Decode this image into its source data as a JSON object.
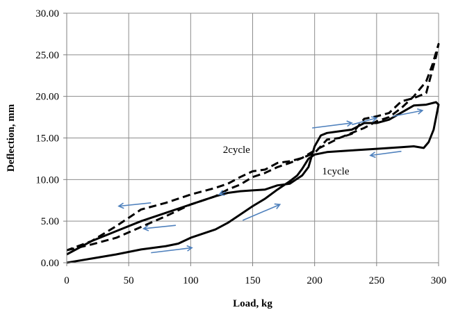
{
  "chart_data": {
    "type": "line",
    "xlabel": "Load, kg",
    "ylabel": "Deflection, mm",
    "xlim": [
      0,
      300
    ],
    "ylim": [
      0,
      30
    ],
    "x_ticks": [
      "0",
      "50",
      "100",
      "150",
      "200",
      "250",
      "300"
    ],
    "y_ticks": [
      "0.00",
      "5.00",
      "10.00",
      "15.00",
      "20.00",
      "25.00",
      "30.00"
    ],
    "grid": "vertical-and-horizontal",
    "legend": "none",
    "series": [
      {
        "style": "solid",
        "x": [
          0,
          20,
          40,
          60,
          80,
          90,
          100,
          120,
          130,
          140,
          150,
          160,
          170,
          180,
          186,
          190,
          195,
          200,
          210,
          230,
          250,
          270,
          280,
          288,
          292,
          296,
          300,
          298,
          290,
          280,
          260,
          250,
          240,
          230,
          220,
          210,
          205,
          200,
          198,
          195,
          190,
          185,
          180,
          170,
          160,
          150,
          140,
          130,
          120,
          100,
          80,
          60,
          40,
          20,
          0
        ],
        "y": [
          0,
          0.5,
          1.0,
          1.6,
          2.0,
          2.3,
          3.0,
          4.0,
          4.8,
          5.8,
          6.8,
          7.7,
          8.8,
          9.8,
          10.5,
          11.3,
          12.5,
          13.0,
          13.3,
          13.5,
          13.7,
          13.9,
          14.0,
          13.8,
          14.5,
          16.0,
          19.0,
          19.3,
          19.0,
          18.9,
          17.2,
          16.8,
          16.8,
          16.0,
          15.8,
          15.6,
          15.3,
          14.0,
          13.0,
          11.5,
          10.5,
          10.0,
          9.5,
          9.3,
          8.8,
          8.7,
          8.6,
          8.4,
          8.0,
          7.0,
          6.0,
          5.0,
          3.8,
          2.6,
          1.0
        ]
      },
      {
        "style": "dashed",
        "x": [
          0,
          20,
          40,
          60,
          80,
          100,
          120,
          130,
          140,
          150,
          160,
          170,
          180,
          190,
          200,
          220,
          240,
          250,
          260,
          270,
          280,
          290,
          295,
          300,
          298,
          290,
          280,
          270,
          260,
          250,
          240,
          230,
          220,
          210,
          200,
          190,
          180,
          170,
          160,
          150,
          140,
          130,
          120,
          100,
          80,
          60,
          40,
          20,
          0
        ],
        "y": [
          1.5,
          2.2,
          3.0,
          4.3,
          5.6,
          7.0,
          8.0,
          8.8,
          9.4,
          10.3,
          10.8,
          11.5,
          12.0,
          12.6,
          13.5,
          15.0,
          16.2,
          17.0,
          17.5,
          18.6,
          20.0,
          21.8,
          23.8,
          26.3,
          24.8,
          20.4,
          19.8,
          19.4,
          18.0,
          17.6,
          17.3,
          15.5,
          15.0,
          14.8,
          13.2,
          12.6,
          12.2,
          12.0,
          11.2,
          11.0,
          10.3,
          9.5,
          9.0,
          8.2,
          7.2,
          6.4,
          4.4,
          2.6,
          1.5
        ]
      }
    ],
    "annotations": [
      {
        "text": "2cycle",
        "x": 126,
        "y": 13.2
      },
      {
        "text": "1cycle",
        "x": 206,
        "y": 10.6
      }
    ],
    "arrows": [
      {
        "x1": 68,
        "y1": 7.2,
        "x2": 42,
        "y2": 6.8
      },
      {
        "x1": 88,
        "y1": 4.5,
        "x2": 62,
        "y2": 4.1
      },
      {
        "x1": 68,
        "y1": 1.2,
        "x2": 101,
        "y2": 1.8
      },
      {
        "x1": 128,
        "y1": 8.5,
        "x2": 123,
        "y2": 8.2
      },
      {
        "x1": 142,
        "y1": 5.1,
        "x2": 172,
        "y2": 7.0
      },
      {
        "x1": 198,
        "y1": 16.2,
        "x2": 230,
        "y2": 16.8
      },
      {
        "x1": 230,
        "y1": 16.6,
        "x2": 250,
        "y2": 17.4
      },
      {
        "x1": 263,
        "y1": 17.6,
        "x2": 287,
        "y2": 18.3
      },
      {
        "x1": 270,
        "y1": 13.4,
        "x2": 245,
        "y2": 12.9
      }
    ],
    "colors": {
      "series": "#000000",
      "arrows": "#4f81bd",
      "grid": "#8c8c8c"
    }
  }
}
